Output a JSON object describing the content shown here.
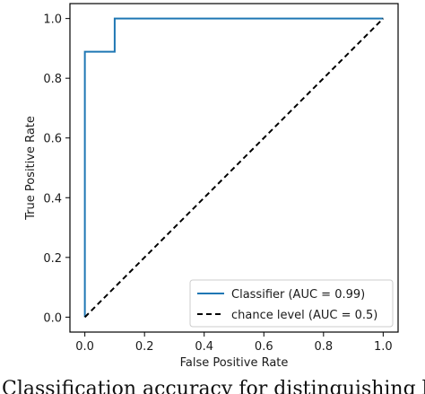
{
  "chart_data": {
    "type": "line",
    "xlabel": "False Positive Rate",
    "ylabel": "True Positive Rate",
    "xlim": [
      -0.05,
      1.05
    ],
    "ylim": [
      -0.05,
      1.05
    ],
    "x_ticks": [
      0.0,
      0.2,
      0.4,
      0.6,
      0.8,
      1.0
    ],
    "y_ticks": [
      0.0,
      0.2,
      0.4,
      0.6,
      0.8,
      1.0
    ],
    "x_tick_labels": [
      "0.0",
      "0.2",
      "0.4",
      "0.6",
      "0.8",
      "1.0"
    ],
    "y_tick_labels": [
      "0.0",
      "0.2",
      "0.4",
      "0.6",
      "0.8",
      "1.0"
    ],
    "grid": false,
    "legend_position": "lower-right",
    "series": [
      {
        "name": "Classifier (AUC = 0.99)",
        "color": "#1f77b4",
        "style": "solid",
        "x": [
          0.0,
          0.0,
          0.1,
          0.1,
          1.0
        ],
        "y": [
          0.0,
          0.889,
          0.889,
          1.0,
          1.0
        ]
      },
      {
        "name": "chance level (AUC = 0.5)",
        "color": "#000000",
        "style": "dashed",
        "x": [
          0.0,
          1.0
        ],
        "y": [
          0.0,
          1.0
        ]
      }
    ]
  },
  "caption": "Classification accuracy for distinguishing b"
}
